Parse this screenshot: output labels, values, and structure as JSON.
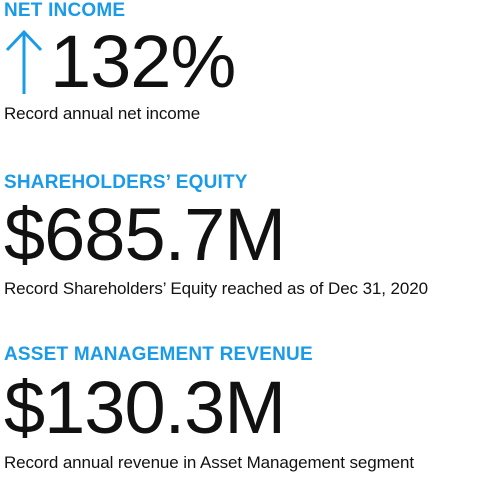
{
  "theme": {
    "accent": "#1a9be8",
    "text": "#111111",
    "background": "#ffffff"
  },
  "net_income": {
    "heading": "NET INCOME",
    "value": "132%",
    "icon": "arrow-up-icon",
    "caption": "Record annual net income"
  },
  "equity": {
    "heading": "SHAREHOLDERS’ EQUITY",
    "value": "$685.7M",
    "caption": "Record Shareholders’ Equity reached as of Dec 31, 2020"
  },
  "asset_mgmt": {
    "heading": "ASSET MANAGEMENT REVENUE",
    "value": "$130.3M",
    "caption": "Record annual revenue in Asset Management segment"
  }
}
